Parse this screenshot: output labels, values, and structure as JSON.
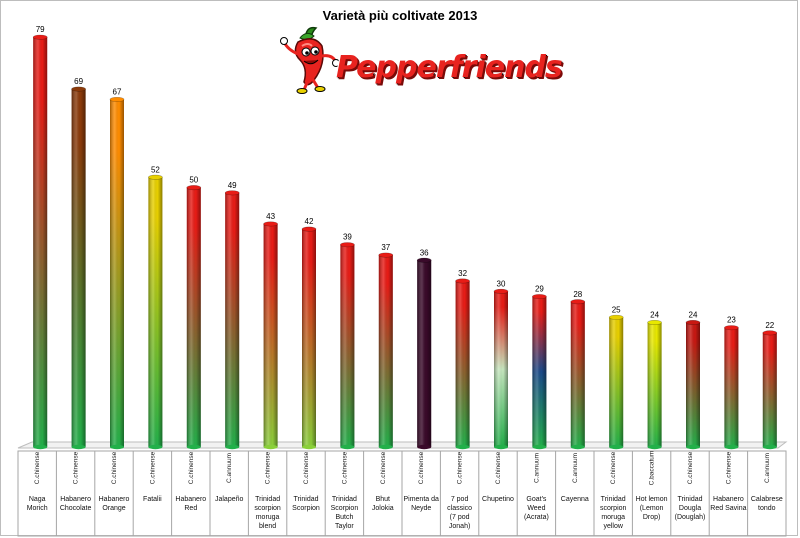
{
  "chart_data": {
    "type": "bar",
    "title": "Varietà più coltivate 2013",
    "categories": [
      "Naga Morich",
      "Habanero Chocolate",
      "Habanero Orange",
      "Fatalii",
      "Habanero Red",
      "Jalapeño",
      "Trinidad scorpion moruga blend",
      "Trinidad Scorpion",
      "Trinidad Scorpion Butch Taylor",
      "Bhut Jolokia",
      "Pimenta da Neyde",
      "7 pod classico (7 pod Jonah)",
      "Chupetino",
      "Goat's Weed (Acrata)",
      "Cayenna",
      "Trinidad scorpion moruga yellow",
      "Hot lemon (Lemon Drop)",
      "Trinidad Dougla (Douglah)",
      "Habanero Red Savina",
      "Calabrese tondo"
    ],
    "species": [
      "C.chinense",
      "C.chinense",
      "C.chinense",
      "C.chinense",
      "C.chinense",
      "C.annuum",
      "C.chinense",
      "C.chinense",
      "C.chinense",
      "C.chinense",
      "C.chinense",
      "C.chinense",
      "C.chinense",
      "C.annuum",
      "C.annuum",
      "C.chinense",
      "C.baccatum",
      "C.chinense",
      "C.chinense",
      "C.annuum"
    ],
    "values": [
      79,
      69,
      67,
      52,
      50,
      49,
      43,
      42,
      39,
      37,
      36,
      32,
      30,
      29,
      28,
      25,
      24,
      24,
      23,
      22
    ],
    "bar_top_colors": [
      "#e81c16",
      "#8b3a0a",
      "#ff8c00",
      "#e8d000",
      "#e81c16",
      "#e81c16",
      "#e81c16",
      "#e81c16",
      "#e81c16",
      "#e81c16",
      "#3a0a2a",
      "#e81c16",
      "#e81c16",
      "#e81c16",
      "#e81c16",
      "#e8d000",
      "#e8e800",
      "#c81812",
      "#e81c16",
      "#e81c16"
    ],
    "bar_bottom_colors": [
      "#22b04a",
      "#22b04a",
      "#22b04a",
      "#22b04a",
      "#22b04a",
      "#22b04a",
      "#8ad03a",
      "#8ad03a",
      "#22b04a",
      "#22b04a",
      "#3a0a2a",
      "#22b04a",
      "#22b04a",
      "#22b04a",
      "#22b04a",
      "#22b04a",
      "#22b04a",
      "#22b04a",
      "#22b04a",
      "#22b04a"
    ],
    "bar_mid_colors": [
      null,
      null,
      null,
      null,
      null,
      null,
      null,
      null,
      null,
      null,
      null,
      null,
      "#c8e8c0",
      "#1a4a8a",
      null,
      null,
      null,
      null,
      null,
      null
    ],
    "ylim": [
      0,
      80
    ],
    "grid": false,
    "legend": "none",
    "data_labels": true
  },
  "logo": {
    "text": "Pepperfriends"
  }
}
